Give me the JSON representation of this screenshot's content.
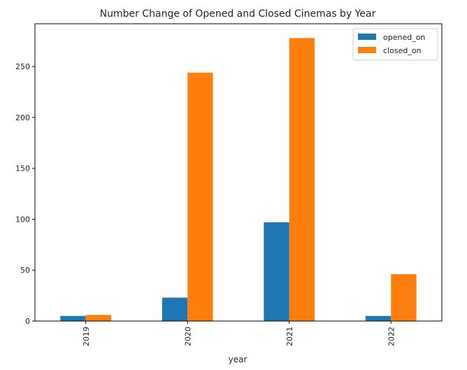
{
  "chart_data": {
    "type": "bar",
    "title": "Number Change of Opened and Closed Cinemas by Year",
    "xlabel": "year",
    "ylabel": "",
    "categories": [
      "2019",
      "2020",
      "2021",
      "2022"
    ],
    "series": [
      {
        "name": "opened_on",
        "color": "#1f77b4",
        "values": [
          5,
          23,
          97,
          5
        ]
      },
      {
        "name": "closed_on",
        "color": "#ff7f0e",
        "values": [
          6,
          244,
          278,
          46
        ]
      }
    ],
    "ylim": [
      0,
      292
    ],
    "yticks": [
      0,
      50,
      100,
      150,
      200,
      250
    ],
    "grid": false,
    "legend_position": "top-right"
  }
}
